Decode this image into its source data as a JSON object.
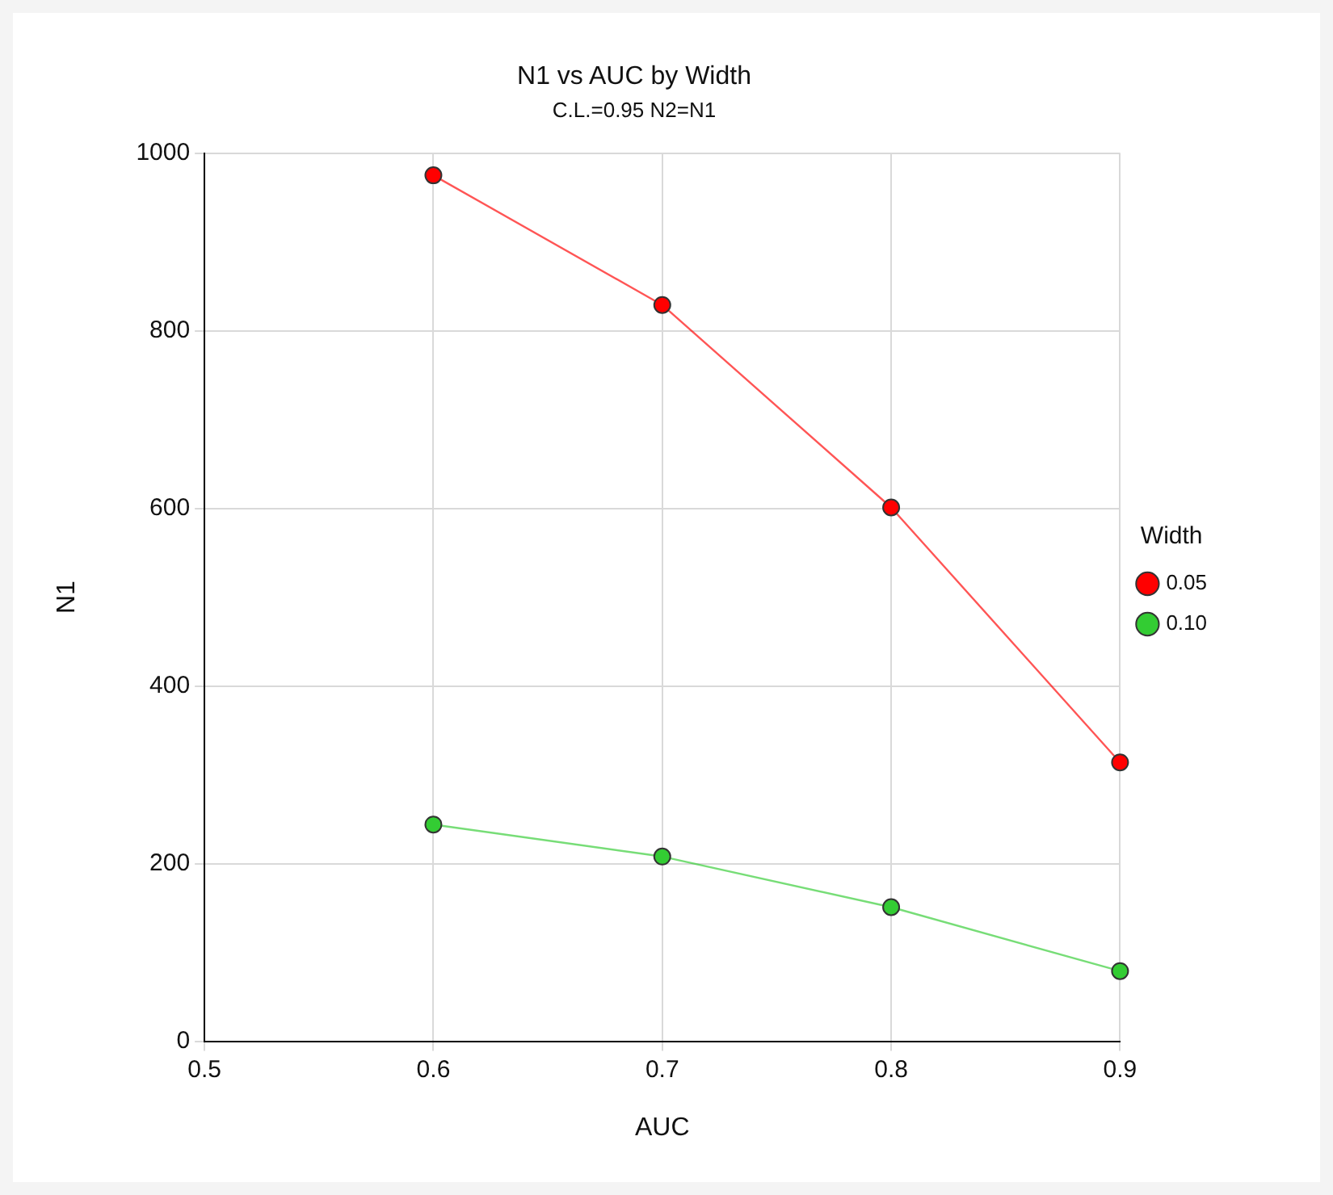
{
  "chart_data": {
    "type": "line",
    "title": "N1 vs AUC by Width",
    "subtitle": "C.L.=0.95 N2=N1",
    "xlabel": "AUC",
    "ylabel": "N1",
    "legend_title": "Width",
    "x": [
      0.6,
      0.7,
      0.8,
      0.9
    ],
    "series": [
      {
        "name": "0.05",
        "color": "#ff0000",
        "values": [
          975,
          829,
          601,
          314
        ]
      },
      {
        "name": "0.10",
        "color": "#33cc33",
        "values": [
          244,
          208,
          151,
          79
        ]
      }
    ],
    "xlim": [
      0.5,
      0.9
    ],
    "xticks": [
      0.5,
      0.6,
      0.7,
      0.8,
      0.9
    ],
    "ylim": [
      0,
      1000
    ],
    "yticks": [
      0,
      200,
      400,
      600,
      800,
      1000
    ],
    "grid": true,
    "legend": "right",
    "marker": "circle",
    "line_style": "solid"
  }
}
